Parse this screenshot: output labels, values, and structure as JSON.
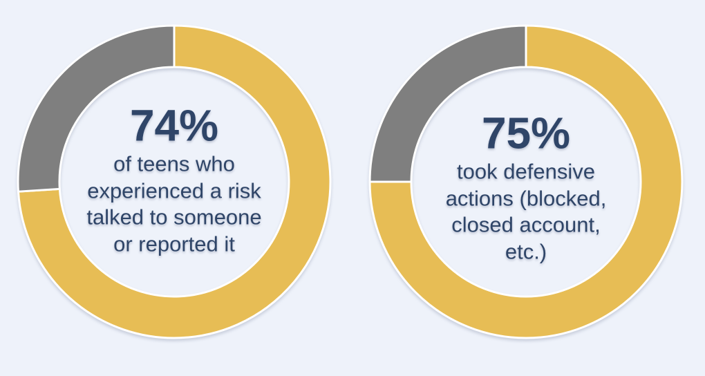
{
  "page": {
    "background": "#EEF2FA",
    "text_color": "#2F4568",
    "segment_border": "#FFFFFF",
    "accent_gold": "#E7BD55",
    "accent_gray": "#7F7F7F"
  },
  "chart_data": [
    {
      "type": "pie",
      "subtype": "donut",
      "start_angle_deg": 0,
      "direction": "clockwise",
      "legend": "none",
      "center_value": "74%",
      "center_lines": [
        "of teens who",
        "experienced a risk",
        "talked to someone",
        "or reported it"
      ],
      "slices": [
        {
          "value": 74,
          "color": "#E7BD55"
        },
        {
          "value": 26,
          "color": "#7F7F7F"
        }
      ]
    },
    {
      "type": "pie",
      "subtype": "donut",
      "start_angle_deg": 0,
      "direction": "clockwise",
      "legend": "none",
      "center_value": "75%",
      "center_lines": [
        "took defensive",
        "actions (blocked,",
        "closed account,",
        "etc.)"
      ],
      "slices": [
        {
          "value": 75,
          "color": "#E7BD55"
        },
        {
          "value": 25,
          "color": "#7F7F7F"
        }
      ]
    }
  ]
}
